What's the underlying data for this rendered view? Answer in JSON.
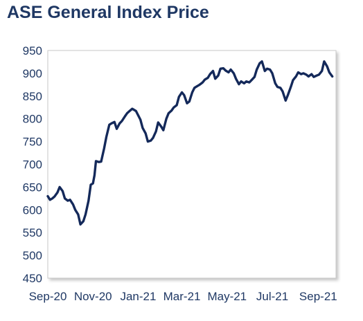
{
  "chart_data": {
    "type": "line",
    "title": "ASE General Index Price",
    "xlabel": "",
    "ylabel": "",
    "ylim": [
      450,
      950
    ],
    "yticks": [
      450,
      500,
      550,
      600,
      650,
      700,
      750,
      800,
      850,
      900,
      950
    ],
    "x_tick_labels": [
      "Sep-20",
      "Nov-20",
      "Jan-21",
      "Mar-21",
      "May-21",
      "Jul-21",
      "Sep-21"
    ],
    "grid": false,
    "legend": "none",
    "line_color": "#14295a",
    "series": [
      {
        "x": [
          "2020-09-01",
          "2020-09-04",
          "2020-09-07",
          "2020-09-10",
          "2020-09-14",
          "2020-09-17",
          "2020-09-21",
          "2020-09-24",
          "2020-09-28",
          "2020-10-01",
          "2020-10-05",
          "2020-10-08",
          "2020-10-12",
          "2020-10-15",
          "2020-10-19",
          "2020-10-22",
          "2020-10-26",
          "2020-10-29",
          "2020-11-01",
          "2020-11-03",
          "2020-11-05",
          "2020-11-09",
          "2020-11-12",
          "2020-11-16",
          "2020-11-19",
          "2020-11-23",
          "2020-11-26",
          "2020-11-30",
          "2020-12-03",
          "2020-12-07",
          "2020-12-10",
          "2020-12-14",
          "2020-12-17",
          "2020-12-21",
          "2020-12-24",
          "2020-12-29",
          "2021-01-04",
          "2021-01-07",
          "2021-01-11",
          "2021-01-14",
          "2021-01-18",
          "2021-01-21",
          "2021-01-25",
          "2021-01-28",
          "2021-02-01",
          "2021-02-04",
          "2021-02-08",
          "2021-02-11",
          "2021-02-15",
          "2021-02-18",
          "2021-02-22",
          "2021-02-25",
          "2021-03-01",
          "2021-03-04",
          "2021-03-08",
          "2021-03-11",
          "2021-03-15",
          "2021-03-18",
          "2021-03-22",
          "2021-03-25",
          "2021-03-29",
          "2021-04-01",
          "2021-04-05",
          "2021-04-08",
          "2021-04-12",
          "2021-04-15",
          "2021-04-19",
          "2021-04-22",
          "2021-04-26",
          "2021-04-29",
          "2021-05-03",
          "2021-05-06",
          "2021-05-10",
          "2021-05-13",
          "2021-05-17",
          "2021-05-20",
          "2021-05-24",
          "2021-05-27",
          "2021-05-31",
          "2021-06-03",
          "2021-06-07",
          "2021-06-10",
          "2021-06-14",
          "2021-06-17",
          "2021-06-21",
          "2021-06-24",
          "2021-06-28",
          "2021-07-01",
          "2021-07-05",
          "2021-07-08",
          "2021-07-12",
          "2021-07-15",
          "2021-07-19",
          "2021-07-22",
          "2021-07-26",
          "2021-07-29",
          "2021-08-02",
          "2021-08-05",
          "2021-08-09",
          "2021-08-12",
          "2021-08-16",
          "2021-08-19",
          "2021-08-23",
          "2021-08-26",
          "2021-08-30",
          "2021-09-02",
          "2021-09-06",
          "2021-09-09",
          "2021-09-13",
          "2021-09-16",
          "2021-09-20"
        ],
        "values": [
          630,
          622,
          625,
          629,
          638,
          650,
          641,
          625,
          620,
          622,
          612,
          600,
          590,
          568,
          575,
          590,
          620,
          655,
          658,
          676,
          707,
          705,
          706,
          735,
          760,
          787,
          790,
          793,
          778,
          790,
          795,
          805,
          812,
          818,
          822,
          817,
          798,
          780,
          768,
          750,
          752,
          758,
          772,
          792,
          783,
          775,
          800,
          812,
          818,
          825,
          830,
          848,
          858,
          852,
          834,
          838,
          858,
          868,
          872,
          875,
          880,
          886,
          890,
          898,
          905,
          888,
          895,
          910,
          911,
          906,
          902,
          908,
          900,
          888,
          876,
          882,
          878,
          882,
          880,
          885,
          892,
          908,
          922,
          926,
          905,
          910,
          908,
          900,
          878,
          870,
          868,
          860,
          840,
          852,
          870,
          885,
          893,
          902,
          898,
          900,
          897,
          893,
          898,
          892,
          895,
          897,
          905,
          926,
          915,
          902,
          893
        ]
      }
    ]
  }
}
